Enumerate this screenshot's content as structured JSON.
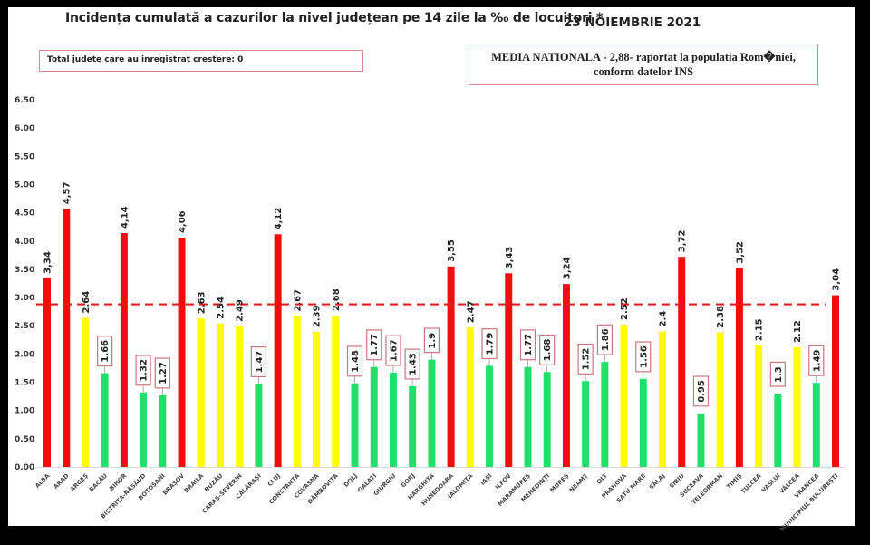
{
  "chart_data": {
    "type": "bar",
    "title": "Incidența cumulată a cazurilor la nivel județean pe 14 zile la ‰ de locuitori *",
    "date": "23 NOIEMBRIE 2021",
    "annotation_left": "Total judete care au inregistrat crestere: 0",
    "annotation_right_line1": "MEDIA NATIONALA - 2,88-  raportat la populatia Rom�niei,",
    "annotation_right_line2": "conform datelor INS",
    "xlabel": "",
    "ylabel": "",
    "ylim": [
      0,
      6.5
    ],
    "yticks": [
      "0.00",
      "0.50",
      "1.00",
      "1.50",
      "2.00",
      "2.50",
      "3.00",
      "3.50",
      "4.00",
      "4.50",
      "5.00",
      "5.50",
      "6.00",
      "6.50"
    ],
    "reference_line": {
      "label": "MEDIA NATIONALA",
      "value": 2.88,
      "color": "#e0201e",
      "style": "dashed"
    },
    "colors": {
      "red": "#f20c0c",
      "yellow": "#ffff00",
      "green": "#20e06a",
      "label_box": "#c9787f"
    },
    "categories": [
      "ALBA",
      "ARAD",
      "ARGEȘ",
      "BACĂU",
      "BIHOR",
      "BISTRIȚA-NĂSĂUD",
      "BOTOȘANI",
      "BRAȘOV",
      "BRĂILA",
      "BUZĂU",
      "CARAȘ-SEVERIN",
      "CĂLĂRAȘI",
      "CLUJ",
      "CONSTANȚA",
      "COVASNA",
      "DÂMBOVIȚA",
      "DOLJ",
      "GALAȚI",
      "GIURGIU",
      "GORJ",
      "HARGHITA",
      "HUNEDOARA",
      "IALOMIȚA",
      "IAȘI",
      "ILFOV",
      "MARAMUREȘ",
      "MEHEDINȚI",
      "MUREȘ",
      "NEAMȚ",
      "OLT",
      "PRAHOVA",
      "SATU MARE",
      "SĂLAJ",
      "SIBIU",
      "SUCEAVA",
      "TELEORMAN",
      "TIMIȘ",
      "TULCEA",
      "VASLUI",
      "VÂLCEA",
      "VRANCEA",
      "MUNICIPIUL BUCUREȘTI"
    ],
    "values": [
      3.34,
      4.57,
      2.64,
      1.66,
      4.14,
      1.32,
      1.27,
      4.06,
      2.63,
      2.54,
      2.49,
      1.47,
      4.12,
      2.67,
      2.39,
      2.68,
      1.48,
      1.77,
      1.67,
      1.43,
      1.9,
      3.55,
      2.47,
      1.79,
      3.43,
      1.77,
      1.68,
      3.24,
      1.52,
      1.86,
      2.52,
      1.56,
      2.4,
      3.72,
      0.95,
      2.38,
      3.52,
      2.15,
      1.3,
      2.12,
      1.49,
      3.04
    ],
    "value_labels": [
      "3,34",
      "4,57",
      "2.64",
      "1.66",
      "4,14",
      "1.32",
      "1.27",
      "4,06",
      "2.63",
      "2.54",
      "2.49",
      "1.47",
      "4,12",
      "2.67",
      "2.39",
      "2.68",
      "1.48",
      "1.77",
      "1.67",
      "1.43",
      "1.9",
      "3,55",
      "2.47",
      "1.79",
      "3,43",
      "1.77",
      "1.68",
      "3,24",
      "1.52",
      "1.86",
      "2.52",
      "1.56",
      "2.4",
      "3,72",
      "0.95",
      "2.38",
      "3,52",
      "2.15",
      "1.3",
      "2.12",
      "1.49",
      "3,04"
    ],
    "categories_color": [
      "red",
      "red",
      "yellow",
      "green",
      "red",
      "green",
      "green",
      "red",
      "yellow",
      "yellow",
      "yellow",
      "green",
      "red",
      "yellow",
      "yellow",
      "yellow",
      "green",
      "green",
      "green",
      "green",
      "green",
      "red",
      "yellow",
      "green",
      "red",
      "green",
      "green",
      "red",
      "green",
      "green",
      "yellow",
      "green",
      "yellow",
      "red",
      "green",
      "yellow",
      "red",
      "yellow",
      "green",
      "yellow",
      "green",
      "red"
    ],
    "grid": false,
    "legend": "none"
  }
}
